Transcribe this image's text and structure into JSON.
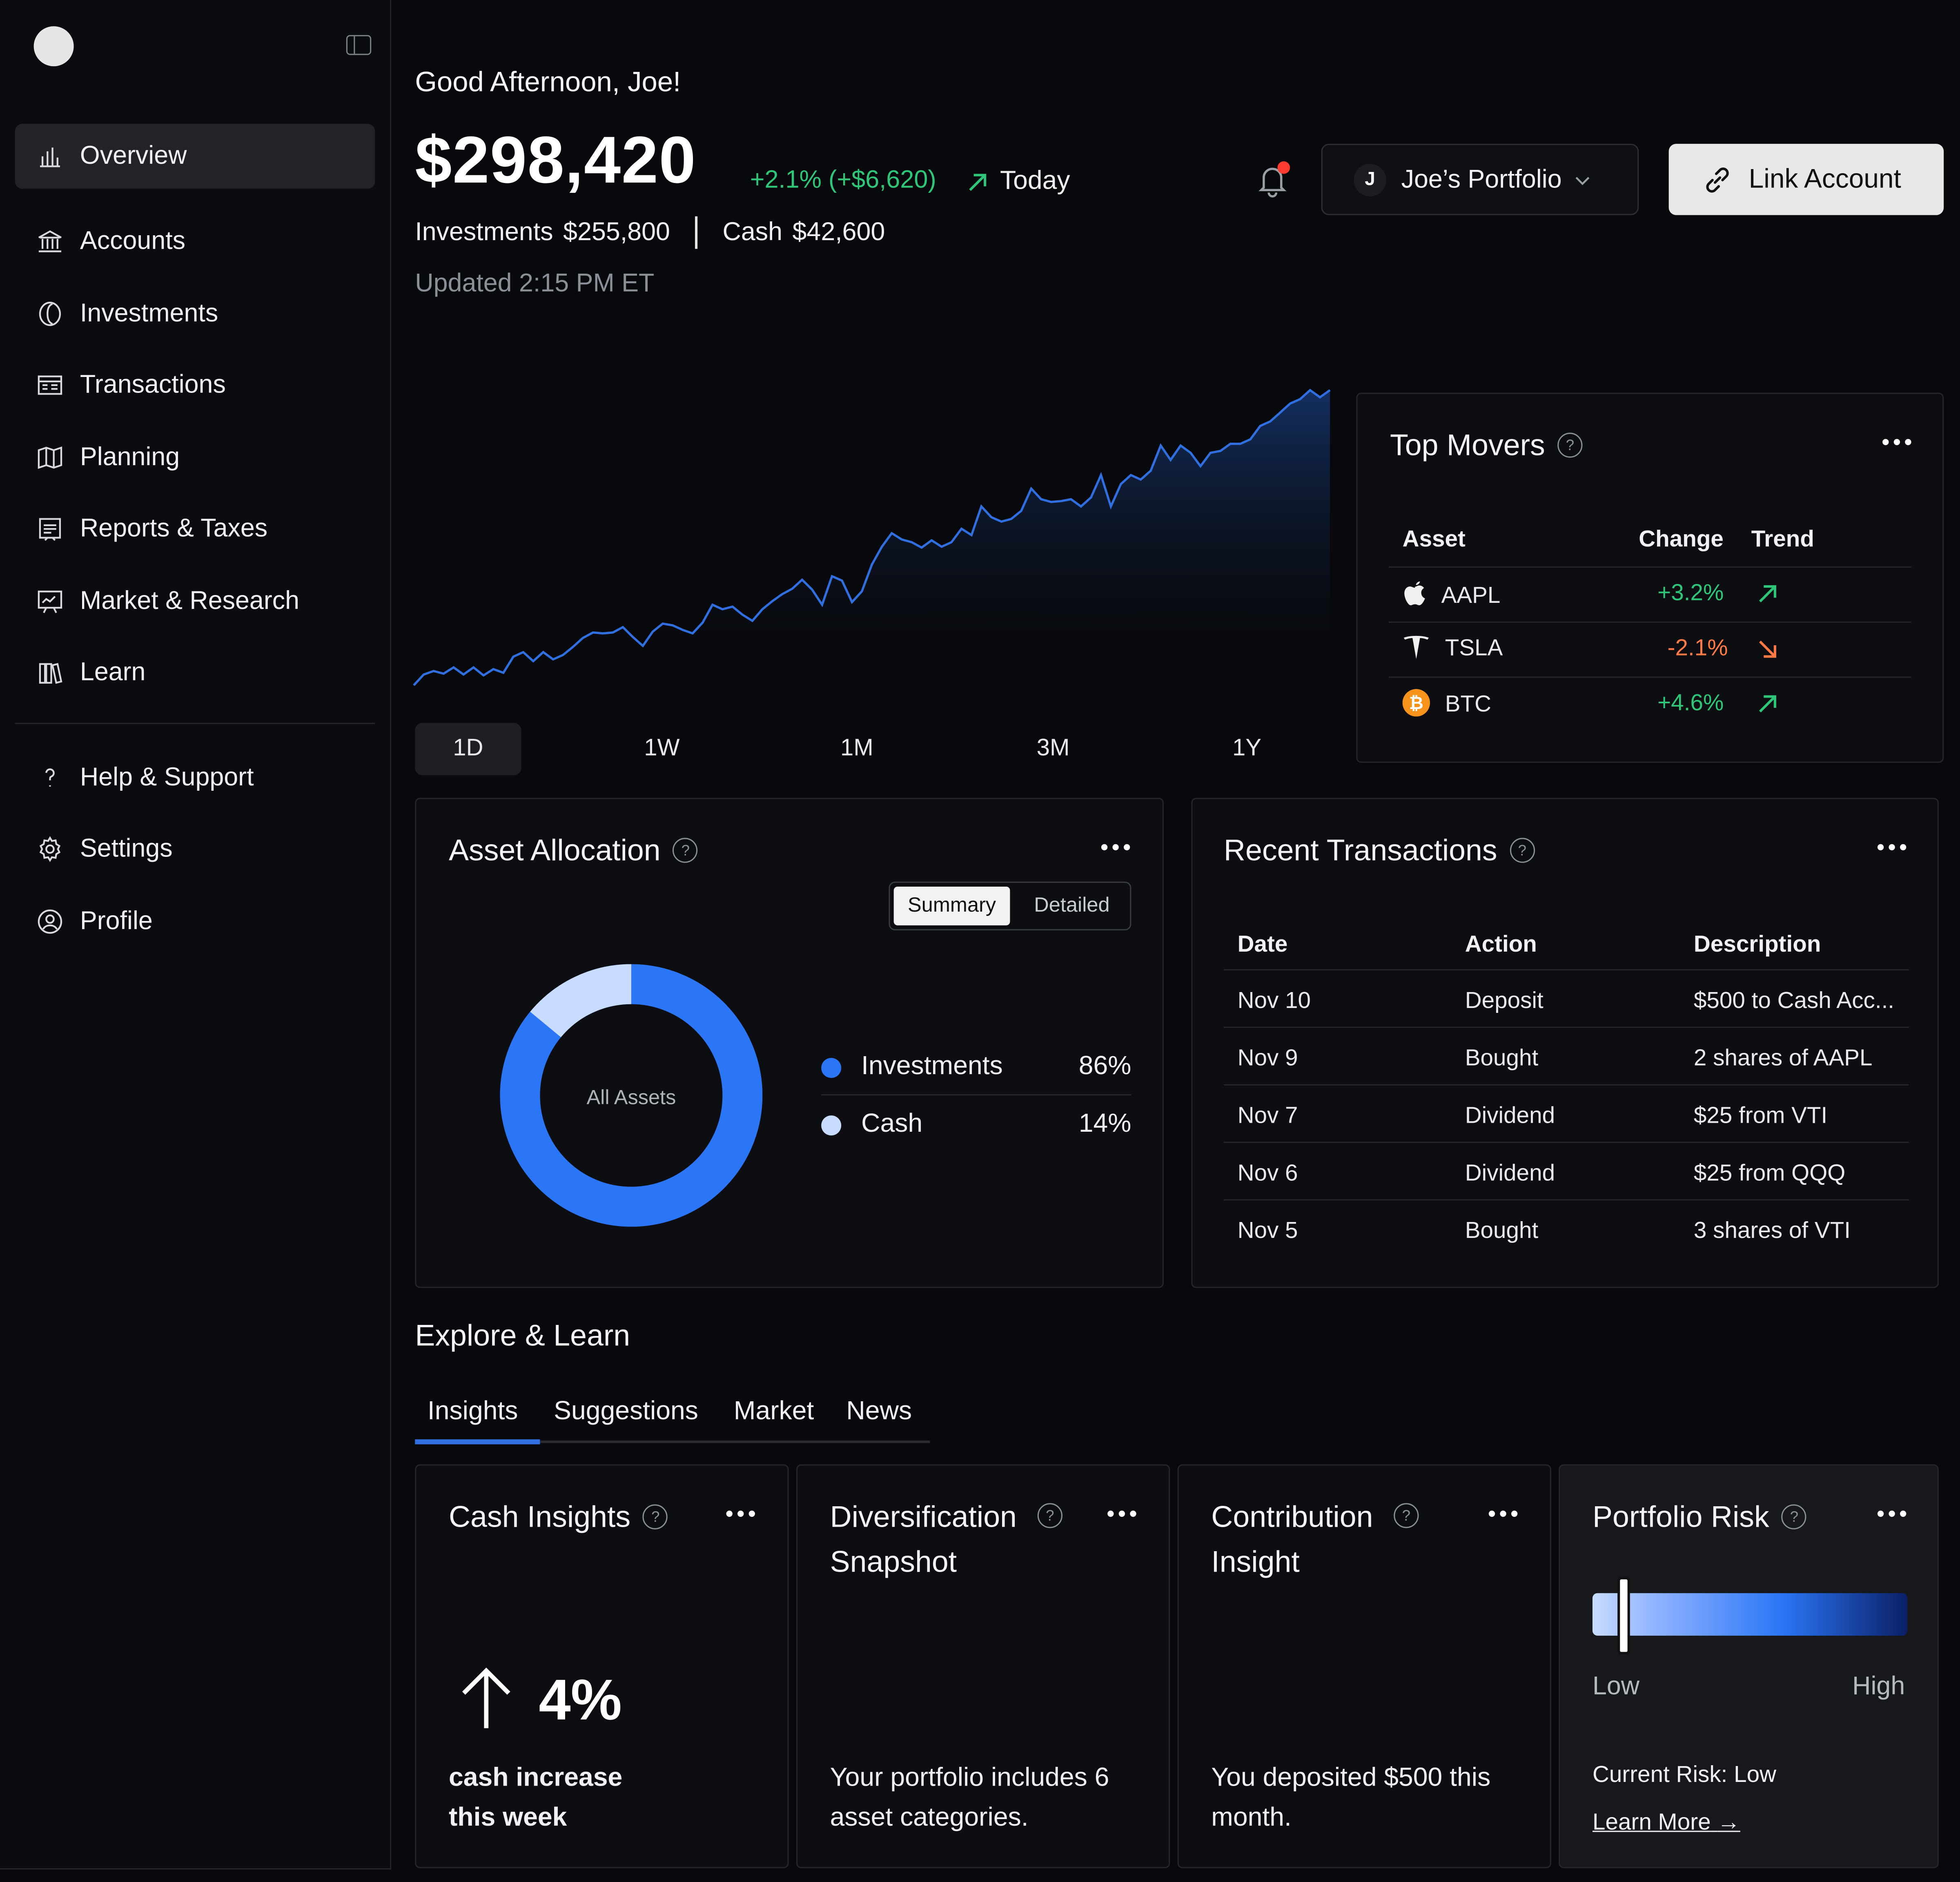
{
  "sidebar": {
    "items": [
      {
        "label": "Overview",
        "icon": "bar-chart-icon",
        "active": true
      },
      {
        "label": "Accounts",
        "icon": "bank-icon"
      },
      {
        "label": "Investments",
        "icon": "coin-icon"
      },
      {
        "label": "Transactions",
        "icon": "receipt-icon"
      },
      {
        "label": "Planning",
        "icon": "map-icon"
      },
      {
        "label": "Reports & Taxes",
        "icon": "report-icon"
      },
      {
        "label": "Market & Research",
        "icon": "presentation-icon"
      },
      {
        "label": "Learn",
        "icon": "books-icon"
      }
    ],
    "secondary": [
      {
        "label": "Help & Support",
        "icon": "question-icon"
      },
      {
        "label": "Settings",
        "icon": "gear-icon"
      },
      {
        "label": "Profile",
        "icon": "user-circle-icon"
      }
    ]
  },
  "header": {
    "greeting": "Good Afternoon, Joe!",
    "balance": "$298,420",
    "change": "+2.1% (+$6,620)",
    "change_period": "Today",
    "investments_label": "Investments",
    "investments_value": "$255,800",
    "cash_label": "Cash",
    "cash_value": "$42,600",
    "updated": "Updated 2:15 PM ET",
    "portfolio_initial": "J",
    "portfolio_name": "Joe’s Portfolio",
    "link_label": "Link Account"
  },
  "range_tabs": [
    "1D",
    "1W",
    "1M",
    "3M",
    "1Y"
  ],
  "range_selected": "1D",
  "colors": {
    "positive": "#2ec77a",
    "negative": "#ff7a45",
    "accent": "#2f6fe0",
    "line": "#2f6fe0"
  },
  "top_movers": {
    "title": "Top Movers",
    "columns": [
      "Asset",
      "Change",
      "Trend"
    ],
    "rows": [
      {
        "asset": "AAPL",
        "icon": "apple-icon",
        "change": "+3.2%",
        "trend": "up"
      },
      {
        "asset": "TSLA",
        "icon": "tesla-icon",
        "change": "-2.1%",
        "trend": "down"
      },
      {
        "asset": "BTC",
        "icon": "bitcoin-icon",
        "change": "+4.6%",
        "trend": "up"
      }
    ]
  },
  "allocation": {
    "title": "Asset Allocation",
    "segments": [
      "Summary",
      "Detailed"
    ],
    "center_label": "All Assets",
    "items": [
      {
        "label": "Investments",
        "value": "86%",
        "percent": 86,
        "color": "#2a76f6"
      },
      {
        "label": "Cash",
        "value": "14%",
        "percent": 14,
        "color": "#c7dcff"
      }
    ]
  },
  "transactions": {
    "title": "Recent Transactions",
    "columns": [
      "Date",
      "Action",
      "Description"
    ],
    "rows": [
      {
        "date": "Nov 10",
        "action": "Deposit",
        "description": "$500 to Cash Acc..."
      },
      {
        "date": "Nov 9",
        "action": "Bought",
        "description": "2 shares of AAPL"
      },
      {
        "date": "Nov 7",
        "action": "Dividend",
        "description": "$25 from VTI"
      },
      {
        "date": "Nov 6",
        "action": "Dividend",
        "description": "$25 from QQQ"
      },
      {
        "date": "Nov 5",
        "action": "Bought",
        "description": "3 shares of VTI"
      }
    ]
  },
  "explore": {
    "title": "Explore & Learn",
    "tabs": [
      "Insights",
      "Suggestions",
      "Market",
      "News"
    ],
    "active_tab": "Insights",
    "cards": [
      {
        "title": "Cash Insights",
        "big": "4%",
        "text": "cash increase this week"
      },
      {
        "title": "Diversification Snapshot",
        "text": "Your portfolio includes 6 asset categories."
      },
      {
        "title": "Contribution Insight",
        "text": "You deposited $500 this month."
      },
      {
        "title": "Portfolio Risk",
        "low": "Low",
        "high": "High",
        "current": "Current Risk: Low",
        "risk_level": 0.1,
        "link": "Learn More"
      }
    ]
  },
  "chart_data": {
    "type": "area",
    "title": "",
    "values": [
      10,
      22,
      26,
      23,
      30,
      22,
      30,
      21,
      28,
      24,
      42,
      47,
      37,
      47,
      39,
      44,
      53,
      63,
      69,
      68,
      69,
      75,
      64,
      54,
      70,
      79,
      77,
      72,
      68,
      80,
      100,
      95,
      98,
      89,
      82,
      95,
      104,
      112,
      118,
      128,
      117,
      100,
      132,
      127,
      103,
      115,
      145,
      165,
      180,
      173,
      170,
      164,
      172,
      165,
      170,
      185,
      178,
      210,
      198,
      193,
      196,
      205,
      230,
      218,
      215,
      216,
      218,
      210,
      220,
      245,
      210,
      235,
      245,
      240,
      250,
      278,
      262,
      278,
      270,
      255,
      270,
      272,
      280,
      280,
      285,
      300,
      305,
      315,
      325,
      330,
      340,
      332,
      340
    ]
  }
}
